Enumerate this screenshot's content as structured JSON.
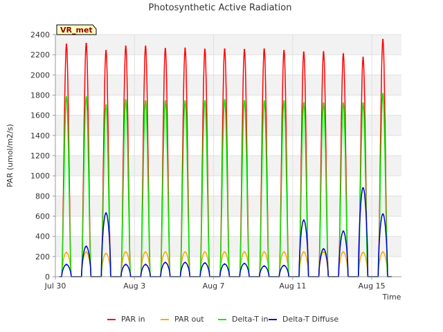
{
  "chart_data": {
    "type": "line",
    "title": "Photosynthetic Active Radiation",
    "xlabel": "Time",
    "ylabel": "PAR (umol/m2/s)",
    "tag": "VR_met",
    "ylim": [
      0,
      2400
    ],
    "xlim": [
      0,
      17.5
    ],
    "x_ticks": [
      {
        "x": 0,
        "label": "Jul 30"
      },
      {
        "x": 4,
        "label": "Aug 3"
      },
      {
        "x": 8,
        "label": "Aug 7"
      },
      {
        "x": 12,
        "label": "Aug 11"
      },
      {
        "x": 16,
        "label": "Aug 15"
      }
    ],
    "y_ticks": [
      0,
      200,
      400,
      600,
      800,
      1000,
      1200,
      1400,
      1600,
      1800,
      2000,
      2200,
      2400
    ],
    "grid": true,
    "legend_position": "bottom",
    "days": [
      0,
      1,
      2,
      3,
      4,
      5,
      6,
      7,
      8,
      9,
      10,
      11,
      12,
      13,
      14,
      15,
      16
    ],
    "series": [
      {
        "name": "PAR in",
        "color": "#ff0000",
        "values": [
          2300,
          2310,
          2240,
          2280,
          2280,
          2260,
          2260,
          2250,
          2255,
          2250,
          2255,
          2240,
          2225,
          2225,
          2205,
          2170,
          2350
        ]
      },
      {
        "name": "PAR out",
        "color": "#ffa500",
        "values": [
          240,
          245,
          230,
          245,
          245,
          245,
          245,
          245,
          245,
          245,
          245,
          245,
          245,
          245,
          245,
          240,
          245
        ]
      },
      {
        "name": "Delta-T in",
        "color": "#00ee00",
        "values": [
          1780,
          1780,
          1700,
          1750,
          1740,
          1740,
          1740,
          1740,
          1750,
          1740,
          1740,
          1740,
          1720,
          1720,
          1720,
          1720,
          1810
        ]
      },
      {
        "name": "Delta-T Diffuse",
        "color": "#0000cc",
        "values": [
          120,
          300,
          630,
          120,
          120,
          140,
          140,
          135,
          125,
          130,
          105,
          110,
          560,
          275,
          450,
          880,
          620
        ]
      }
    ]
  }
}
